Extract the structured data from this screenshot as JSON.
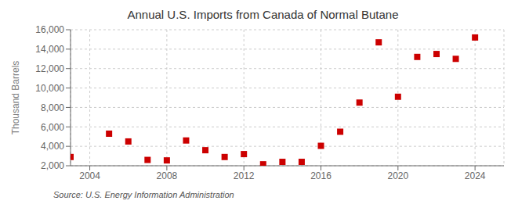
{
  "chart_data": {
    "type": "scatter",
    "title": "Annual U.S. Imports from Canada of Normal Butane",
    "ylabel": "Thousand Barrels",
    "annotation": "Source: U.S. Energy Information Administration",
    "x": [
      2003,
      2005,
      2006,
      2007,
      2008,
      2009,
      2010,
      2011,
      2012,
      2013,
      2014,
      2015,
      2016,
      2017,
      2018,
      2019,
      2020,
      2021,
      2022,
      2023,
      2024
    ],
    "values": [
      2900,
      5300,
      4500,
      2600,
      2550,
      4600,
      3600,
      2900,
      3200,
      2150,
      2400,
      2400,
      4050,
      5500,
      8500,
      14700,
      9100,
      13200,
      13500,
      13000,
      15200
    ],
    "color": "#cc0000",
    "marker": "square",
    "xlim": [
      2003.0,
      2025.5
    ],
    "xticks": [
      2004,
      2008,
      2012,
      2016,
      2020,
      2024
    ],
    "ylim": [
      2000,
      16000
    ],
    "yticks": [
      {
        "value": 2000,
        "label": "2,000"
      },
      {
        "value": 4000,
        "label": "4,000"
      },
      {
        "value": 6000,
        "label": "6,000"
      },
      {
        "value": 8000,
        "label": "8,000"
      },
      {
        "value": 10000,
        "label": "10,000"
      },
      {
        "value": 12000,
        "label": "12,000"
      },
      {
        "value": 14000,
        "label": "14,000"
      },
      {
        "value": 16000,
        "label": "16,000"
      }
    ],
    "grid": true
  }
}
